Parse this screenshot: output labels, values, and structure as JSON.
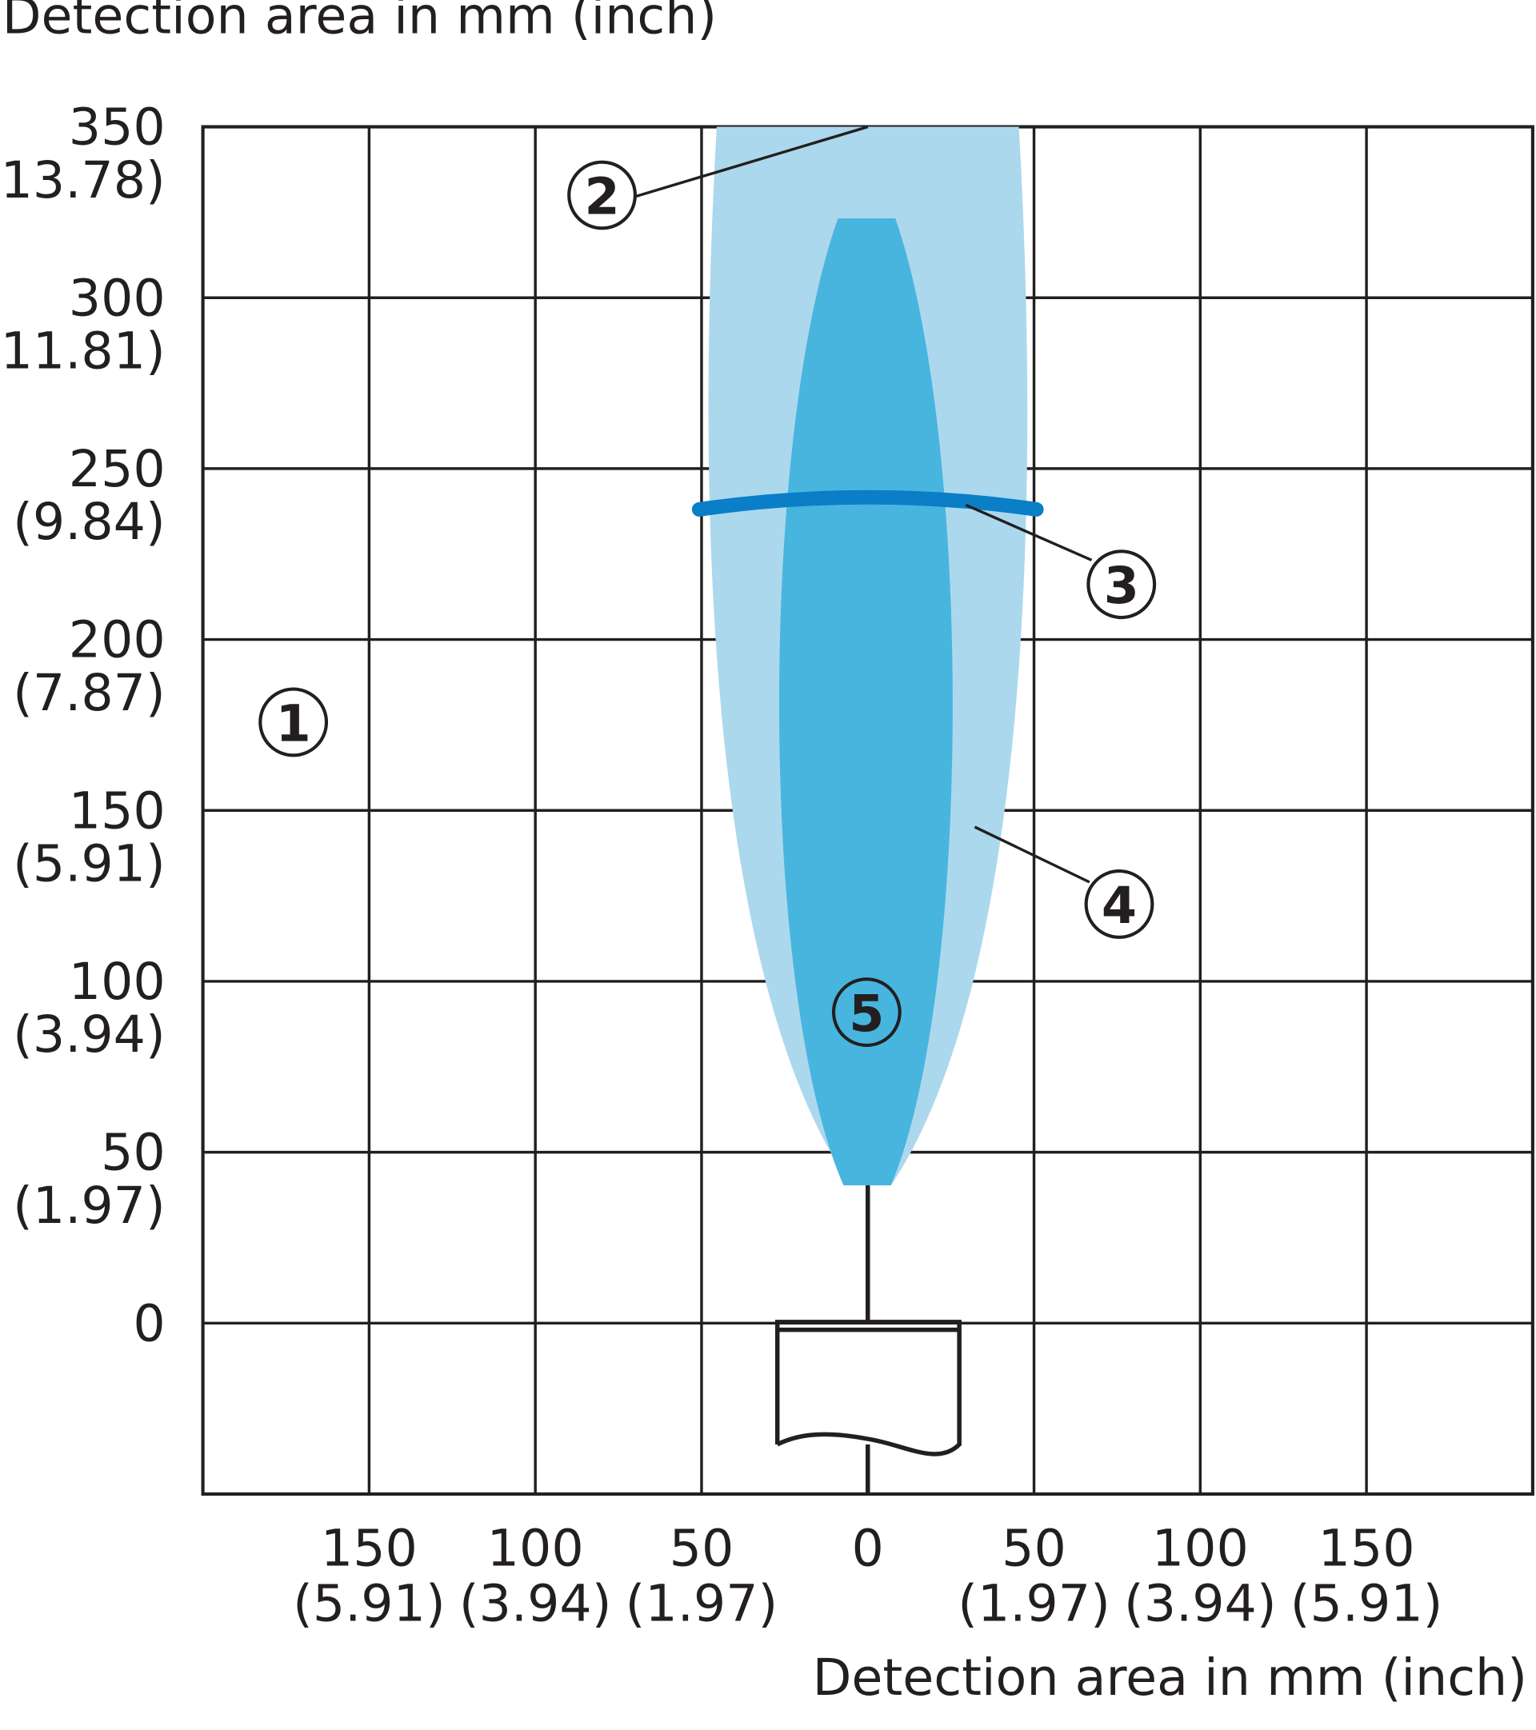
{
  "chart_data": {
    "type": "detection-area",
    "ylabel": "Detection area in mm (inch)",
    "xlabel": "Detection area in mm (inch)",
    "xlim": [
      -200,
      200
    ],
    "ylim": [
      -50,
      350
    ],
    "yticks": [
      0,
      50,
      100,
      150,
      200,
      250,
      300,
      350
    ],
    "yticks_inch": [
      null,
      "(1.97)",
      "(3.94)",
      "(5.91)",
      "(7.87)",
      "(9.84)",
      "(11.81)",
      "(13.78)"
    ],
    "xticks": [
      {
        "value": -150,
        "label": "150"
      },
      {
        "value": -100,
        "label": "100"
      },
      {
        "value": -50,
        "label": "50"
      },
      0,
      50,
      100,
      150
    ],
    "xticks_inch": [
      "(5.91)",
      "(3.94)",
      "(1.97)",
      null,
      "(1.97)",
      "(3.94)",
      "(5.91)"
    ],
    "grid": true,
    "callouts": [
      "1",
      "2",
      "3",
      "4",
      "5"
    ]
  }
}
